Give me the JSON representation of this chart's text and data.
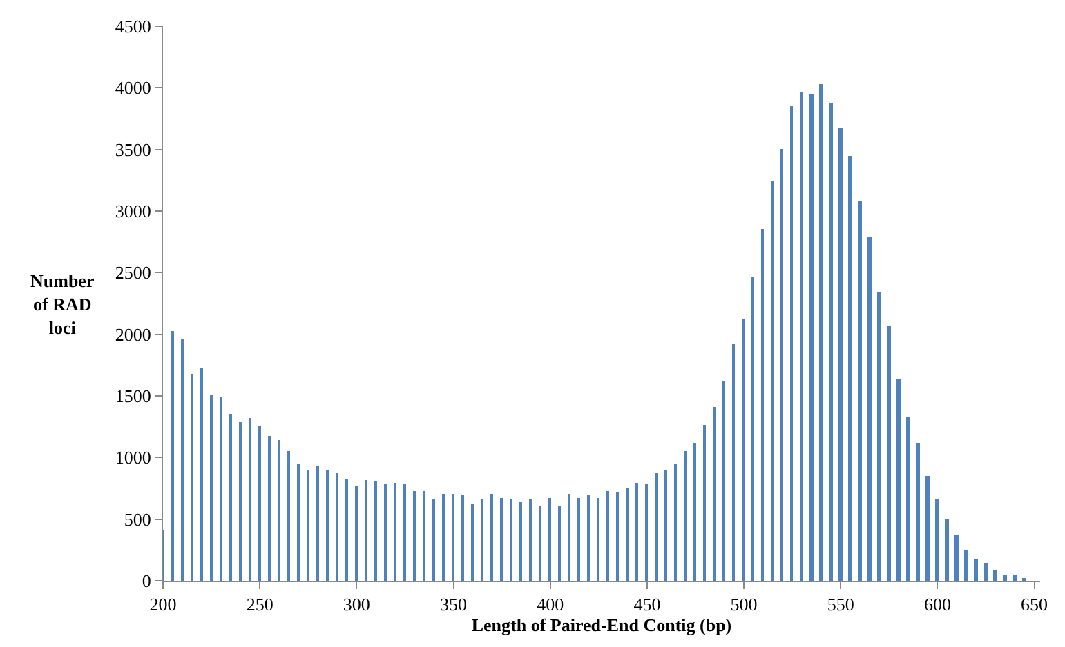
{
  "chart_data": {
    "type": "bar",
    "xlabel": "Length of Paired-End Contig (bp)",
    "ylabel": "Number\nof RAD\nloci",
    "color": "#4f81bd",
    "x": [
      200,
      205,
      210,
      215,
      220,
      225,
      230,
      235,
      240,
      245,
      250,
      255,
      260,
      265,
      270,
      275,
      280,
      285,
      290,
      295,
      300,
      305,
      310,
      315,
      320,
      325,
      330,
      335,
      340,
      345,
      350,
      355,
      360,
      365,
      370,
      375,
      380,
      385,
      390,
      395,
      400,
      405,
      410,
      415,
      420,
      425,
      430,
      435,
      440,
      445,
      450,
      455,
      460,
      465,
      470,
      475,
      480,
      485,
      490,
      495,
      500,
      505,
      510,
      515,
      520,
      525,
      530,
      535,
      540,
      545,
      550,
      555,
      560,
      565,
      570,
      575,
      580,
      585,
      590,
      595,
      600,
      605,
      610,
      615,
      620,
      625,
      630,
      635,
      640,
      645
    ],
    "values": [
      410,
      2030,
      1960,
      1680,
      1720,
      1510,
      1490,
      1350,
      1290,
      1320,
      1250,
      1170,
      1140,
      1050,
      950,
      890,
      930,
      900,
      870,
      830,
      770,
      820,
      810,
      780,
      800,
      780,
      730,
      730,
      660,
      710,
      710,
      690,
      630,
      660,
      700,
      670,
      660,
      640,
      660,
      600,
      670,
      610,
      710,
      670,
      690,
      670,
      730,
      720,
      750,
      800,
      780,
      870,
      900,
      950,
      1050,
      1120,
      1260,
      1410,
      1620,
      1930,
      2130,
      2460,
      2850,
      3250,
      3500,
      3850,
      3960,
      3950,
      4030,
      3870,
      3670,
      3450,
      3080,
      2790,
      2340,
      2070,
      1630,
      1330,
      1120,
      850,
      660,
      500,
      370,
      250,
      180,
      140,
      90,
      50,
      40,
      20
    ],
    "xlim": [
      200,
      653
    ],
    "xticks": [
      200,
      250,
      300,
      350,
      400,
      450,
      500,
      550,
      600,
      650
    ],
    "ylim": [
      0,
      4500
    ],
    "yticks": [
      0,
      500,
      1000,
      1500,
      2000,
      2500,
      3000,
      3500,
      4000,
      4500
    ]
  }
}
